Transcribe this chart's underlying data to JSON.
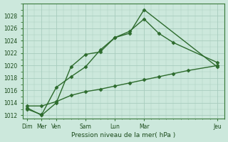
{
  "bg_color": "#cce8dc",
  "grid_color": "#a8ccbe",
  "line_color": "#2d6b2d",
  "marker_color": "#2d6b2d",
  "xlabel": "Pression niveau de la mer( hPa )",
  "ylim": [
    1011.5,
    1030.0
  ],
  "yticks": [
    1012,
    1014,
    1016,
    1018,
    1020,
    1022,
    1024,
    1026,
    1028
  ],
  "major_x_pos": [
    0,
    1,
    2,
    4,
    6,
    8,
    13
  ],
  "major_x_labels": [
    "Dim",
    "Mer",
    "Ven",
    "Sam",
    "Lun",
    "Mar",
    "Jeu"
  ],
  "xlim": [
    -0.3,
    13.5
  ],
  "series1_x": [
    0,
    1,
    2,
    3,
    4,
    5,
    6,
    7,
    8,
    13
  ],
  "series1_y": [
    1013.2,
    1012.0,
    1014.0,
    1019.8,
    1021.8,
    1022.2,
    1024.5,
    1025.2,
    1029.0,
    1019.8
  ],
  "series2_x": [
    0,
    1,
    2,
    3,
    4,
    5,
    6,
    7,
    8,
    9,
    10,
    13
  ],
  "series2_y": [
    1013.0,
    1012.1,
    1016.5,
    1018.2,
    1019.8,
    1022.5,
    1024.5,
    1025.5,
    1027.5,
    1025.2,
    1023.7,
    1020.5
  ],
  "series3_x": [
    0,
    1,
    2,
    3,
    4,
    5,
    6,
    7,
    8,
    9,
    10,
    11,
    13
  ],
  "series3_y": [
    1013.5,
    1013.5,
    1014.2,
    1015.2,
    1015.8,
    1016.2,
    1016.7,
    1017.2,
    1017.7,
    1018.2,
    1018.7,
    1019.2,
    1020.0
  ],
  "figsize": [
    3.2,
    2.0
  ],
  "dpi": 100
}
